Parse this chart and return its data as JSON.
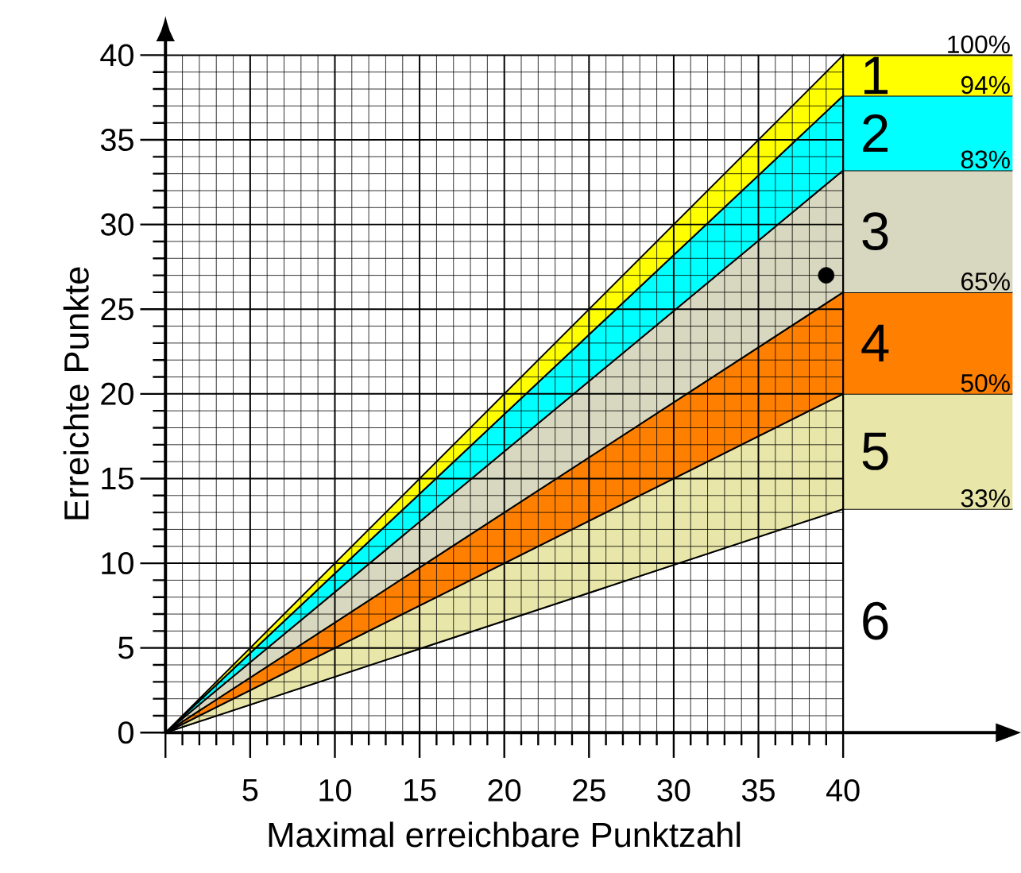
{
  "chart_data": {
    "type": "area",
    "stacked": true,
    "xlabel": "Maximal erreichbare Punktzahl",
    "ylabel": "Erreichte Punkte",
    "x": [
      0,
      40
    ],
    "series": [
      {
        "name": "6",
        "color": "#ffffff",
        "values": [
          0,
          13.2
        ]
      },
      {
        "name": "5",
        "color": "#e8e6a8",
        "values": [
          0,
          6.8
        ]
      },
      {
        "name": "4",
        "color": "#ff8000",
        "values": [
          0,
          6
        ]
      },
      {
        "name": "3",
        "color": "#d8d8c0",
        "values": [
          0,
          7.2
        ]
      },
      {
        "name": "2",
        "color": "#00ffff",
        "values": [
          0,
          4.4
        ]
      },
      {
        "name": "1",
        "color": "#ffff00",
        "values": [
          0,
          2.4
        ]
      },
      {
        "type": "scatter",
        "color": "#000000",
        "x": [
          39
        ],
        "values": [
          27
        ],
        "marker": "circle"
      }
    ],
    "xlim": [
      0,
      40
    ],
    "ylim": [
      0,
      40
    ],
    "xticks": [
      {
        "value": 0,
        "label": null
      },
      5,
      10,
      15,
      20,
      25,
      30,
      35,
      40
    ],
    "yticks": [
      0,
      5,
      10,
      15,
      20,
      25,
      30,
      35,
      40
    ],
    "grid": true,
    "legend": "right",
    "annotations": [
      "100%",
      "94%",
      "83%",
      "65%",
      "50%",
      "33%"
    ]
  }
}
